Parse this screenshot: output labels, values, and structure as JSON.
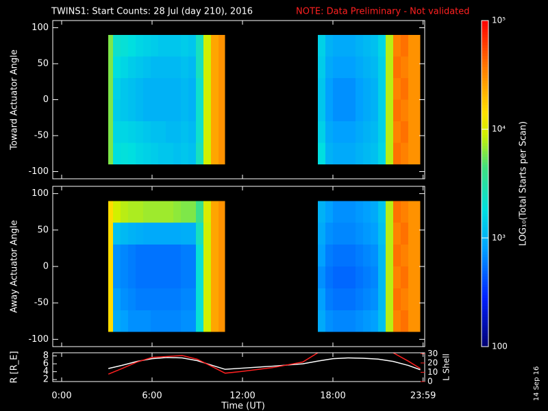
{
  "chart_data": {
    "type": "heatmap",
    "title": "TWINS1: Start Counts: 28 Jul (day 210), 2016",
    "note": "NOTE: Data Preliminary - Not validated",
    "xlabel": "Time (UT)",
    "xlim": [
      0,
      24
    ],
    "xticks": [
      {
        "value": 0,
        "label": "0:00"
      },
      {
        "value": 6,
        "label": "6:00"
      },
      {
        "value": 12,
        "label": "12:00"
      },
      {
        "value": 18,
        "label": "18:00"
      },
      {
        "value": 23.983,
        "label": "23:59"
      }
    ],
    "stamp": "14 Sep 16",
    "colorbar": {
      "label": "LOG₁₀(Total Starts per Scan)",
      "log": true,
      "lim": [
        100,
        100000
      ],
      "ticks": [
        {
          "value": 100000,
          "label": "10⁵"
        },
        {
          "value": 10000,
          "label": "10⁴"
        },
        {
          "value": 1000,
          "label": "10³"
        },
        100
      ]
    },
    "panels": [
      {
        "ylabel": "Toward Actuator Angle",
        "ylim": [
          -110,
          110
        ],
        "yticks": [
          -100,
          -50,
          0,
          50,
          100
        ],
        "y_edges": [
          -90,
          -60,
          -30,
          0,
          30,
          60,
          90
        ],
        "segments": [
          {
            "x_edges": [
              3.1,
              3.4,
              3.9,
              4.4,
              4.9,
              5.4,
              5.9,
              6.4,
              6.9,
              7.4,
              7.9,
              8.4,
              8.9,
              9.4,
              9.9,
              10.4,
              10.85
            ],
            "z": [
              [
                6000,
                1800,
                1900,
                1800,
                1600,
                1500,
                1400,
                1300,
                1300,
                1200,
                1300,
                1200,
                2500,
                9000,
                25000,
                30000
              ],
              [
                6000,
                1600,
                1600,
                1500,
                1400,
                1300,
                1200,
                1200,
                1100,
                1100,
                1200,
                1100,
                2200,
                9000,
                25000,
                30000
              ],
              [
                6000,
                1400,
                1300,
                1200,
                1100,
                1000,
                1000,
                1000,
                1000,
                1000,
                1100,
                1000,
                2200,
                9000,
                25000,
                30000
              ],
              [
                6000,
                1500,
                1300,
                1200,
                1100,
                1000,
                1000,
                1000,
                1000,
                1000,
                1100,
                1000,
                2200,
                9000,
                25000,
                30000
              ],
              [
                6000,
                1800,
                1600,
                1400,
                1300,
                1200,
                1100,
                1100,
                1100,
                1100,
                1200,
                1100,
                2500,
                9000,
                25000,
                30000
              ],
              [
                6000,
                2200,
                2000,
                1800,
                1600,
                1500,
                1400,
                1300,
                1300,
                1300,
                1400,
                1300,
                2500,
                9000,
                25000,
                30000
              ]
            ]
          },
          {
            "x_edges": [
              17,
              17.5,
              18,
              18.5,
              19,
              19.5,
              20,
              20.5,
              21,
              21.5,
              22,
              22.5,
              23,
              23.8
            ],
            "z": [
              [
                1800,
                1000,
                900,
                900,
                900,
                1000,
                1100,
                1200,
                1600,
                8000,
                40000,
                35000,
                30000
              ],
              [
                1500,
                900,
                800,
                800,
                800,
                900,
                1000,
                1100,
                1500,
                8000,
                35000,
                40000,
                30000
              ],
              [
                1300,
                800,
                700,
                700,
                700,
                800,
                900,
                1000,
                1500,
                8000,
                40000,
                35000,
                30000
              ],
              [
                1300,
                800,
                700,
                700,
                700,
                800,
                900,
                1000,
                1500,
                8000,
                35000,
                40000,
                30000
              ],
              [
                1400,
                900,
                800,
                800,
                800,
                900,
                1000,
                1100,
                1500,
                8000,
                40000,
                35000,
                30000
              ],
              [
                1500,
                1000,
                900,
                900,
                900,
                1000,
                1100,
                1200,
                1600,
                8000,
                35000,
                40000,
                30000
              ]
            ]
          }
        ]
      },
      {
        "ylabel": "Away Actuator Angle",
        "ylim": [
          -110,
          110
        ],
        "yticks": [
          -100,
          -50,
          0,
          50,
          100
        ],
        "y_edges": [
          -90,
          -60,
          -30,
          0,
          30,
          60,
          90
        ],
        "segments": [
          {
            "x_edges": [
              3.1,
              3.4,
              3.9,
              4.4,
              4.9,
              5.4,
              5.9,
              6.4,
              6.9,
              7.4,
              7.9,
              8.4,
              8.9,
              9.4,
              9.9,
              10.4,
              10.85
            ],
            "z": [
              [
                15000,
                900,
                800,
                700,
                700,
                700,
                650,
                650,
                650,
                650,
                700,
                700,
                2000,
                9000,
                25000,
                30000
              ],
              [
                15000,
                800,
                700,
                650,
                600,
                600,
                600,
                600,
                600,
                600,
                650,
                650,
                2000,
                9000,
                25000,
                30000
              ],
              [
                15000,
                700,
                650,
                600,
                550,
                550,
                550,
                550,
                550,
                550,
                600,
                600,
                2000,
                9000,
                25000,
                30000
              ],
              [
                15000,
                700,
                650,
                600,
                550,
                550,
                550,
                550,
                550,
                550,
                600,
                600,
                2000,
                9000,
                25000,
                30000
              ],
              [
                15000,
                1200,
                1100,
                1000,
                950,
                900,
                900,
                900,
                900,
                900,
                950,
                950,
                2500,
                9000,
                25000,
                30000
              ],
              [
                15000,
                9000,
                8000,
                7500,
                7500,
                7000,
                7000,
                7000,
                7000,
                6500,
                6000,
                6000,
                4000,
                10000,
                25000,
                30000
              ]
            ]
          },
          {
            "x_edges": [
              17,
              17.5,
              18,
              18.5,
              19,
              19.5,
              20,
              20.5,
              21,
              21.5,
              22,
              22.5,
              23,
              23.8
            ],
            "z": [
              [
                900,
                700,
                650,
                650,
                650,
                700,
                750,
                800,
                1200,
                8000,
                35000,
                40000,
                30000
              ],
              [
                800,
                600,
                550,
                550,
                550,
                600,
                650,
                700,
                1100,
                8000,
                40000,
                35000,
                30000
              ],
              [
                700,
                550,
                500,
                500,
                500,
                550,
                600,
                650,
                1100,
                8000,
                35000,
                40000,
                30000
              ],
              [
                800,
                600,
                550,
                550,
                550,
                600,
                650,
                700,
                1100,
                8000,
                40000,
                35000,
                30000
              ],
              [
                900,
                700,
                650,
                650,
                650,
                700,
                750,
                800,
                1200,
                8000,
                35000,
                40000,
                30000
              ],
              [
                1000,
                800,
                700,
                700,
                700,
                750,
                800,
                900,
                1300,
                8000,
                40000,
                35000,
                30000
              ]
            ]
          }
        ]
      }
    ],
    "orbit": {
      "type": "line",
      "ylabel": "R [R_E]",
      "ylim": [
        1.5,
        8.8
      ],
      "yticks": [
        2,
        4,
        6,
        8
      ],
      "y2label": "L Shell",
      "y2lim": [
        0,
        31
      ],
      "y2ticks": [
        0,
        10,
        20,
        30
      ],
      "x": [
        3.1,
        4,
        5,
        6,
        7,
        8,
        9,
        10,
        10.85,
        12,
        14,
        16,
        17,
        18,
        19,
        20,
        21,
        22,
        23,
        23.8
      ],
      "series": [
        {
          "color": "#ffffff",
          "values": [
            4.8,
            5.6,
            6.6,
            7.3,
            7.6,
            7.5,
            6.8,
            5.6,
            4.6,
            4.9,
            5.4,
            6.0,
            6.7,
            7.3,
            7.5,
            7.4,
            7.2,
            6.6,
            5.6,
            4.5
          ]
        },
        {
          "color": "#ff2020",
          "axis": "y2",
          "values": [
            8,
            14,
            21,
            26,
            27,
            28,
            24,
            16,
            9,
            11,
            15,
            21,
            31,
            null,
            null,
            null,
            null,
            31,
            22,
            14
          ]
        }
      ]
    }
  }
}
